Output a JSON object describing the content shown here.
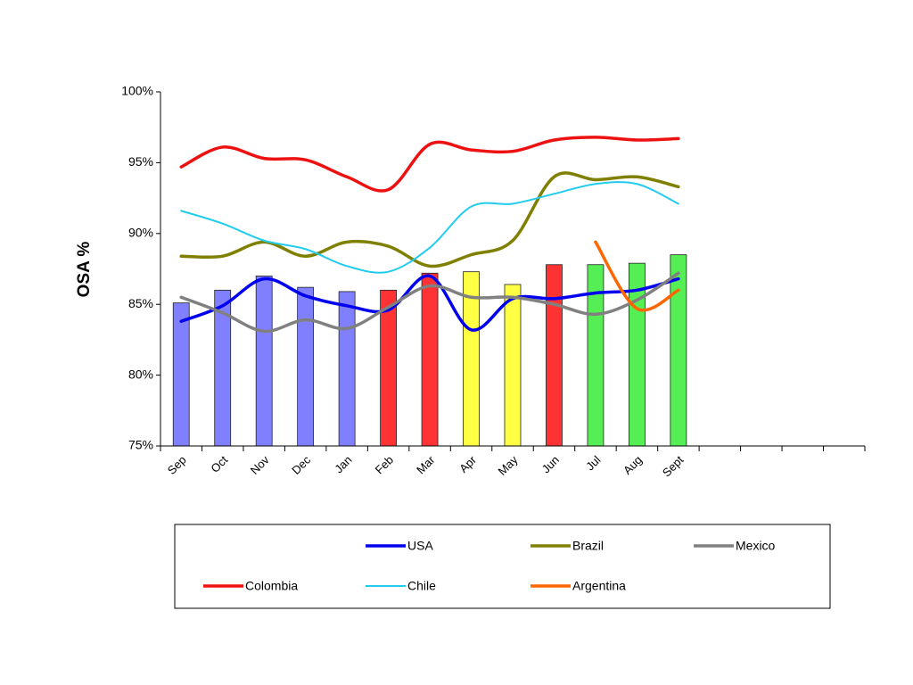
{
  "chart_data": {
    "type": "bar-line",
    "y_axis_label": "OSA %",
    "categories": [
      "Sep",
      "Oct",
      "Nov",
      "Dec",
      "Jan",
      "Feb",
      "Mar",
      "Apr",
      "May",
      "Jun",
      "Jul",
      "Aug",
      "Sept",
      null,
      null,
      null,
      null
    ],
    "bars": {
      "values": [
        85.1,
        86.0,
        87.0,
        86.2,
        85.9,
        86.0,
        87.2,
        87.3,
        86.4,
        87.8,
        87.8,
        87.9,
        88.5,
        null,
        null,
        null,
        null
      ],
      "colors": [
        "#8080ff",
        "#8080ff",
        "#8080ff",
        "#8080ff",
        "#8080ff",
        "#ff3333",
        "#ff3333",
        "#ffff44",
        "#ffff44",
        "#ff3333",
        "#55ee55",
        "#55ee55",
        "#55ee55",
        null,
        null,
        null,
        null
      ]
    },
    "series": [
      {
        "name": "USA",
        "color": "#0000ee",
        "width": 3.5,
        "values": [
          83.8,
          84.9,
          86.8,
          85.6,
          84.9,
          84.6,
          87.0,
          83.2,
          85.4,
          85.4,
          85.8,
          86.0,
          86.8,
          null,
          null,
          null,
          null
        ]
      },
      {
        "name": "Brazil",
        "color": "#808000",
        "width": 3.5,
        "values": [
          88.4,
          88.4,
          89.4,
          88.4,
          89.4,
          89.1,
          87.7,
          88.5,
          89.5,
          94.0,
          93.8,
          94.0,
          93.3,
          null,
          null,
          null,
          null
        ]
      },
      {
        "name": "Mexico",
        "color": "#808080",
        "width": 3.5,
        "values": [
          85.5,
          84.4,
          83.1,
          83.9,
          83.3,
          84.8,
          86.3,
          85.5,
          85.5,
          85.0,
          84.3,
          85.3,
          87.2,
          null,
          null,
          null,
          null
        ]
      },
      {
        "name": "Colombia",
        "color": "#ee1111",
        "width": 3.5,
        "values": [
          94.7,
          96.1,
          95.3,
          95.2,
          94.0,
          93.1,
          96.3,
          95.9,
          95.8,
          96.6,
          96.8,
          96.6,
          96.7,
          null,
          null,
          null,
          null
        ]
      },
      {
        "name": "Chile",
        "color": "#22ccee",
        "width": 2,
        "values": [
          91.6,
          90.7,
          89.5,
          88.9,
          87.7,
          87.3,
          89.0,
          91.9,
          92.1,
          92.8,
          93.5,
          93.5,
          92.1,
          null,
          null,
          null,
          null
        ]
      },
      {
        "name": "Argentina",
        "color": "#ff6600",
        "width": 3.5,
        "values": [
          null,
          null,
          null,
          null,
          null,
          null,
          null,
          null,
          null,
          null,
          89.4,
          84.7,
          86.0,
          null,
          null,
          null,
          null
        ]
      }
    ],
    "ylim": [
      75,
      100
    ],
    "yticks": [
      {
        "value": 75,
        "label": "75%"
      },
      {
        "value": 80,
        "label": "80%"
      },
      {
        "value": 85,
        "label": "85%"
      },
      {
        "value": 90,
        "label": "90%"
      },
      {
        "value": 95,
        "label": "95%"
      },
      {
        "value": 100,
        "label": "100%"
      }
    ]
  }
}
